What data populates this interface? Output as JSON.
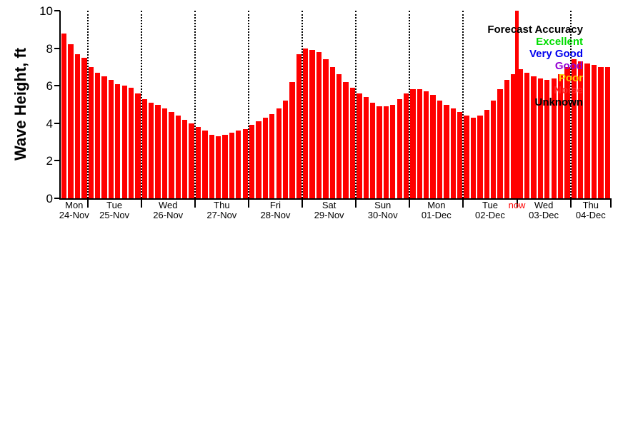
{
  "figure": {
    "background": "#ffffff"
  },
  "chart_data": {
    "type": "bar",
    "title": "",
    "ylabel": "Wave Height, ft",
    "ylim": [
      0,
      10
    ],
    "y_ticks": [
      0,
      2,
      4,
      6,
      8,
      10
    ],
    "bar_color": "#ff0000",
    "axis_color": "#000000",
    "grid": "vertical dotted lines at day boundaries",
    "legend_position": "top-right-inside",
    "values": [
      8.8,
      8.2,
      7.7,
      7.5,
      7.0,
      6.7,
      6.5,
      6.3,
      6.1,
      6.0,
      5.9,
      5.6,
      5.3,
      5.1,
      5.0,
      4.8,
      4.6,
      4.4,
      4.2,
      4.0,
      3.8,
      3.6,
      3.4,
      3.3,
      3.4,
      3.5,
      3.6,
      3.7,
      3.9,
      4.1,
      4.3,
      4.5,
      4.8,
      5.2,
      6.2,
      7.7,
      8.0,
      7.9,
      7.8,
      7.4,
      7.0,
      6.6,
      6.2,
      5.9,
      5.6,
      5.4,
      5.1,
      4.9,
      4.9,
      5.0,
      5.3,
      5.6,
      5.8,
      5.8,
      5.7,
      5.5,
      5.2,
      5.0,
      4.8,
      4.6,
      4.4,
      4.3,
      4.4,
      4.7,
      5.2,
      5.8,
      6.3,
      6.6,
      6.9,
      6.7,
      6.5,
      6.4,
      6.3,
      6.4,
      6.6,
      7.0,
      7.4,
      7.3,
      7.2,
      7.1,
      7.0,
      7.0
    ],
    "days": [
      {
        "label": "Mon",
        "date": "24-Nov",
        "start": 0,
        "end": 4
      },
      {
        "label": "Tue",
        "date": "25-Nov",
        "start": 4,
        "end": 12
      },
      {
        "label": "Wed",
        "date": "26-Nov",
        "start": 12,
        "end": 20
      },
      {
        "label": "Thu",
        "date": "27-Nov",
        "start": 20,
        "end": 28
      },
      {
        "label": "Fri",
        "date": "28-Nov",
        "start": 28,
        "end": 36
      },
      {
        "label": "Sat",
        "date": "29-Nov",
        "start": 36,
        "end": 44
      },
      {
        "label": "Sun",
        "date": "30-Nov",
        "start": 44,
        "end": 52
      },
      {
        "label": "Mon",
        "date": "01-Dec",
        "start": 52,
        "end": 60
      },
      {
        "label": "Tue",
        "date": "02-Dec",
        "start": 60,
        "end": 68
      },
      {
        "label": "Wed",
        "date": "03-Dec",
        "start": 68,
        "end": 76
      },
      {
        "label": "Thu",
        "date": "04-Dec",
        "start": 76,
        "end": 82
      }
    ],
    "now_marker": {
      "label": "now",
      "bar_index": 68,
      "color": "#ff0000"
    },
    "legend": {
      "title": "Forecast Accuracy",
      "title_color": "#000000",
      "entries": [
        {
          "label": "Excellent",
          "color": "#00dd00"
        },
        {
          "label": "Very Good",
          "color": "#0000ee"
        },
        {
          "label": "Good",
          "color": "#9400d3"
        },
        {
          "label": "Poor",
          "color": "#ffcc00"
        },
        {
          "label": "Noise",
          "color": "#ff2222"
        },
        {
          "label": "Unknown",
          "color": "#000000"
        }
      ]
    }
  }
}
